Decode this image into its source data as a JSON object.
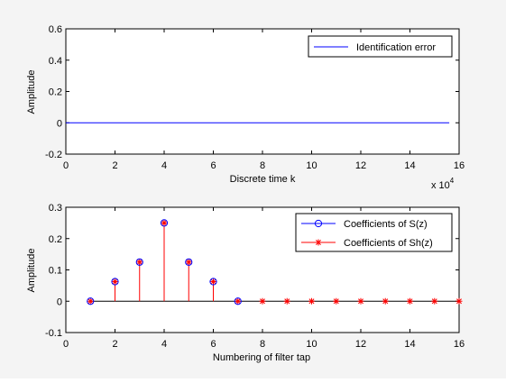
{
  "chart_data": [
    {
      "type": "line",
      "xlabel": "Discrete time k",
      "ylabel": "Amplitude",
      "xlim": [
        0,
        16
      ],
      "ylim": [
        -0.2,
        0.6
      ],
      "x_ticks": [
        "0",
        "2",
        "4",
        "6",
        "8",
        "10",
        "12",
        "14",
        "16"
      ],
      "y_ticks": [
        "-0.2",
        "0",
        "0.2",
        "0.4",
        "0.6"
      ],
      "x_exponent": "x 10",
      "x_exponent_power": "4",
      "legend_position": "top-right",
      "series": [
        {
          "name": "Identification error",
          "color": "#0000ff",
          "x": [
            0,
            15.6
          ],
          "values": [
            0,
            0
          ]
        }
      ]
    },
    {
      "type": "stem",
      "xlabel": "Numbering of filter tap",
      "ylabel": "Amplitude",
      "xlim": [
        0,
        16
      ],
      "ylim": [
        -0.1,
        0.3
      ],
      "x_ticks": [
        "0",
        "2",
        "4",
        "6",
        "8",
        "10",
        "12",
        "14",
        "16"
      ],
      "y_ticks": [
        "-0.1",
        "0",
        "0.1",
        "0.2",
        "0.3"
      ],
      "legend_position": "top-right",
      "series": [
        {
          "name": "Coefficients of S(z)",
          "color": "#0000ff",
          "marker": "circle",
          "x": [
            1,
            2,
            3,
            4,
            5,
            6,
            7
          ],
          "values": [
            0,
            0.0625,
            0.125,
            0.25,
            0.125,
            0.0625,
            0
          ]
        },
        {
          "name": "Coefficients of Sh(z)",
          "color": "#ff0000",
          "marker": "star",
          "x": [
            1,
            2,
            3,
            4,
            5,
            6,
            7,
            8,
            9,
            10,
            11,
            12,
            13,
            14,
            15,
            16
          ],
          "values": [
            0,
            0.0625,
            0.125,
            0.25,
            0.125,
            0.0625,
            0,
            0,
            0,
            0,
            0,
            0,
            0,
            0,
            0,
            0
          ]
        }
      ]
    }
  ]
}
